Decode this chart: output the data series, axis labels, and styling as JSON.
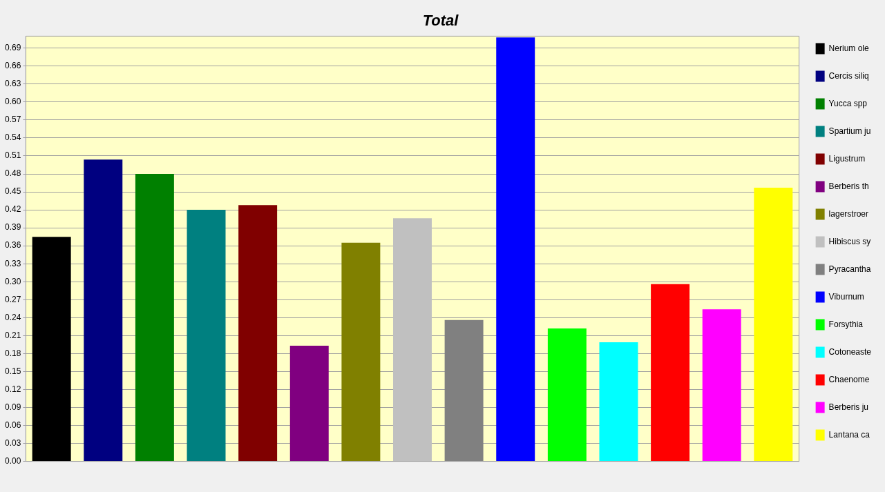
{
  "chart_data": {
    "type": "bar",
    "title": "Total",
    "categories": [
      null,
      null,
      null,
      null,
      null,
      null,
      null,
      null,
      null,
      null,
      null,
      null,
      null,
      null,
      null
    ],
    "series": [
      {
        "name": "Nerium ole",
        "color": "#000000",
        "values": [
          0.375,
          null,
          null,
          null,
          null,
          null,
          null,
          null,
          null,
          null,
          null,
          null,
          null,
          null,
          null
        ]
      },
      {
        "name": "Cercis siliq",
        "color": "#000080",
        "values": [
          null,
          0.504,
          null,
          null,
          null,
          null,
          null,
          null,
          null,
          null,
          null,
          null,
          null,
          null,
          null
        ]
      },
      {
        "name": "Yucca spp",
        "color": "#008000",
        "values": [
          null,
          null,
          0.48,
          null,
          null,
          null,
          null,
          null,
          null,
          null,
          null,
          null,
          null,
          null,
          null
        ]
      },
      {
        "name": "Spartium ju",
        "color": "#008080",
        "values": [
          null,
          null,
          null,
          0.42,
          null,
          null,
          null,
          null,
          null,
          null,
          null,
          null,
          null,
          null,
          null
        ]
      },
      {
        "name": "Ligustrum",
        "color": "#800000",
        "values": [
          null,
          null,
          null,
          null,
          0.428,
          null,
          null,
          null,
          null,
          null,
          null,
          null,
          null,
          null,
          null
        ]
      },
      {
        "name": "Berberis th",
        "color": "#800080",
        "values": [
          null,
          null,
          null,
          null,
          null,
          0.193,
          null,
          null,
          null,
          null,
          null,
          null,
          null,
          null,
          null
        ]
      },
      {
        "name": "lagerstroer",
        "color": "#808000",
        "values": [
          null,
          null,
          null,
          null,
          null,
          null,
          0.365,
          null,
          null,
          null,
          null,
          null,
          null,
          null,
          null
        ]
      },
      {
        "name": "Hibiscus sy",
        "color": "#c0c0c0",
        "values": [
          null,
          null,
          null,
          null,
          null,
          null,
          null,
          0.406,
          null,
          null,
          null,
          null,
          null,
          null,
          null
        ]
      },
      {
        "name": "Pyracantha",
        "color": "#808080",
        "values": [
          null,
          null,
          null,
          null,
          null,
          null,
          null,
          null,
          0.236,
          null,
          null,
          null,
          null,
          null,
          null
        ]
      },
      {
        "name": "Viburnum",
        "color": "#0000ff",
        "values": [
          null,
          null,
          null,
          null,
          null,
          null,
          null,
          null,
          null,
          0.708,
          null,
          null,
          null,
          null,
          null
        ]
      },
      {
        "name": "Forsythia",
        "color": "#00ff00",
        "values": [
          null,
          null,
          null,
          null,
          null,
          null,
          null,
          null,
          null,
          null,
          0.222,
          null,
          null,
          null,
          null
        ]
      },
      {
        "name": "Cotoneaste",
        "color": "#00ffff",
        "values": [
          null,
          null,
          null,
          null,
          null,
          null,
          null,
          null,
          null,
          null,
          null,
          0.199,
          null,
          null,
          null
        ]
      },
      {
        "name": "Chaenome",
        "color": "#ff0000",
        "values": [
          null,
          null,
          null,
          null,
          null,
          null,
          null,
          null,
          null,
          null,
          null,
          null,
          0.296,
          null,
          null
        ]
      },
      {
        "name": "Berberis ju",
        "color": "#ff00ff",
        "values": [
          null,
          null,
          null,
          null,
          null,
          null,
          null,
          null,
          null,
          null,
          null,
          null,
          null,
          0.254,
          null
        ]
      },
      {
        "name": "Lantana ca",
        "color": "#ffff00",
        "values": [
          null,
          null,
          null,
          null,
          null,
          null,
          null,
          null,
          null,
          null,
          null,
          null,
          null,
          null,
          0.457
        ]
      }
    ],
    "ylim": [
      0,
      0.71
    ],
    "yticks": [
      {
        "value": 0,
        "label": "0.00"
      },
      0.03,
      0.06,
      0.09,
      0.12,
      0.15,
      0.18,
      0.21,
      0.24,
      0.27,
      {
        "value": 0.3,
        "label": "0.30"
      },
      0.33,
      0.36,
      0.39,
      0.42,
      0.45,
      0.48,
      0.51,
      0.54,
      0.57,
      {
        "value": 0.6,
        "label": "0.60"
      },
      0.63,
      0.66,
      0.69
    ],
    "grid": "y",
    "legend": "right"
  }
}
